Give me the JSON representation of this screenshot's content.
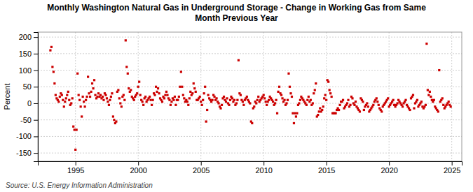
{
  "chart_data": {
    "type": "scatter",
    "title": "Monthly Washington Natural Gas in Underground Storage - Change in Working Gas from Same\nMonth Previous Year",
    "ylabel": "Percent",
    "annotations": [
      "Source: U.S. Energy Information Administration"
    ],
    "color": "#cc0000",
    "marker": "square",
    "grid": true,
    "xlim": [
      1992.0,
      2025.8
    ],
    "ylim": [
      -175,
      215
    ],
    "xticks": [
      1995,
      2000,
      2005,
      2010,
      2015,
      2020,
      2025
    ],
    "yticks": [
      -150,
      -100,
      -50,
      0,
      50,
      100,
      150,
      200
    ],
    "x": [
      1993.0,
      1993.083,
      1993.167,
      1993.25,
      1993.333,
      1993.417,
      1993.5,
      1993.583,
      1993.667,
      1993.75,
      1993.833,
      1993.917,
      1994.0,
      1994.083,
      1994.167,
      1994.25,
      1994.333,
      1994.417,
      1994.5,
      1994.583,
      1994.667,
      1994.75,
      1994.833,
      1994.917,
      1995.0,
      1995.083,
      1995.167,
      1995.25,
      1995.333,
      1995.417,
      1995.5,
      1995.583,
      1995.667,
      1995.75,
      1995.833,
      1995.917,
      1996.0,
      1996.083,
      1996.167,
      1996.25,
      1996.333,
      1996.417,
      1996.5,
      1996.583,
      1996.667,
      1996.75,
      1996.833,
      1996.917,
      1997.0,
      1997.083,
      1997.167,
      1997.25,
      1997.333,
      1997.417,
      1997.5,
      1997.583,
      1997.667,
      1997.75,
      1997.833,
      1997.917,
      1998.0,
      1998.083,
      1998.167,
      1998.25,
      1998.333,
      1998.417,
      1998.5,
      1998.583,
      1998.667,
      1998.75,
      1998.833,
      1998.917,
      1999.0,
      1999.083,
      1999.167,
      1999.25,
      1999.333,
      1999.417,
      1999.5,
      1999.583,
      1999.667,
      1999.75,
      1999.833,
      1999.917,
      2000.0,
      2000.083,
      2000.167,
      2000.25,
      2000.333,
      2000.417,
      2000.5,
      2000.583,
      2000.667,
      2000.75,
      2000.833,
      2000.917,
      2001.0,
      2001.083,
      2001.167,
      2001.25,
      2001.333,
      2001.417,
      2001.5,
      2001.583,
      2001.667,
      2001.75,
      2001.833,
      2001.917,
      2002.0,
      2002.083,
      2002.167,
      2002.25,
      2002.333,
      2002.417,
      2002.5,
      2002.583,
      2002.667,
      2002.75,
      2002.833,
      2002.917,
      2003.0,
      2003.083,
      2003.167,
      2003.25,
      2003.333,
      2003.417,
      2003.5,
      2003.583,
      2003.667,
      2003.75,
      2003.833,
      2003.917,
      2004.0,
      2004.083,
      2004.167,
      2004.25,
      2004.333,
      2004.417,
      2004.5,
      2004.583,
      2004.667,
      2004.75,
      2004.833,
      2004.917,
      2005.0,
      2005.083,
      2005.167,
      2005.25,
      2005.333,
      2005.417,
      2005.5,
      2005.583,
      2005.667,
      2005.75,
      2005.833,
      2005.917,
      2006.0,
      2006.083,
      2006.167,
      2006.25,
      2006.333,
      2006.417,
      2006.5,
      2006.583,
      2006.667,
      2006.75,
      2006.833,
      2006.917,
      2007.0,
      2007.083,
      2007.167,
      2007.25,
      2007.333,
      2007.417,
      2007.5,
      2007.583,
      2007.667,
      2007.75,
      2007.833,
      2007.917,
      2008.0,
      2008.083,
      2008.167,
      2008.25,
      2008.333,
      2008.417,
      2008.5,
      2008.583,
      2008.667,
      2008.75,
      2008.833,
      2008.917,
      2009.0,
      2009.083,
      2009.167,
      2009.25,
      2009.333,
      2009.417,
      2009.5,
      2009.583,
      2009.667,
      2009.75,
      2009.833,
      2009.917,
      2010.0,
      2010.083,
      2010.167,
      2010.25,
      2010.333,
      2010.417,
      2010.5,
      2010.583,
      2010.667,
      2010.75,
      2010.833,
      2010.917,
      2011.0,
      2011.083,
      2011.167,
      2011.25,
      2011.333,
      2011.417,
      2011.5,
      2011.583,
      2011.667,
      2011.75,
      2011.833,
      2011.917,
      2012.0,
      2012.083,
      2012.167,
      2012.25,
      2012.333,
      2012.417,
      2012.5,
      2012.583,
      2012.667,
      2012.75,
      2012.833,
      2012.917,
      2013.0,
      2013.083,
      2013.167,
      2013.25,
      2013.333,
      2013.417,
      2013.5,
      2013.583,
      2013.667,
      2013.75,
      2013.833,
      2013.917,
      2014.0,
      2014.083,
      2014.167,
      2014.25,
      2014.333,
      2014.417,
      2014.5,
      2014.583,
      2014.667,
      2014.75,
      2014.833,
      2014.917,
      2015.0,
      2015.083,
      2015.167,
      2015.25,
      2015.333,
      2015.417,
      2015.5,
      2015.583,
      2015.667,
      2015.75,
      2015.833,
      2015.917,
      2016.0,
      2016.083,
      2016.167,
      2016.25,
      2016.333,
      2016.417,
      2016.5,
      2016.583,
      2016.667,
      2016.75,
      2016.833,
      2016.917,
      2017.0,
      2017.083,
      2017.167,
      2017.25,
      2017.333,
      2017.417,
      2017.5,
      2017.583,
      2017.667,
      2017.75,
      2017.833,
      2017.917,
      2018.0,
      2018.083,
      2018.167,
      2018.25,
      2018.333,
      2018.417,
      2018.5,
      2018.583,
      2018.667,
      2018.75,
      2018.833,
      2018.917,
      2019.0,
      2019.083,
      2019.167,
      2019.25,
      2019.333,
      2019.417,
      2019.5,
      2019.583,
      2019.667,
      2019.75,
      2019.833,
      2019.917,
      2020.0,
      2020.083,
      2020.167,
      2020.25,
      2020.333,
      2020.417,
      2020.5,
      2020.583,
      2020.667,
      2020.75,
      2020.833,
      2020.917,
      2021.0,
      2021.083,
      2021.167,
      2021.25,
      2021.333,
      2021.417,
      2021.5,
      2021.583,
      2021.667,
      2021.75,
      2021.833,
      2021.917,
      2022.0,
      2022.083,
      2022.167,
      2022.25,
      2022.333,
      2022.417,
      2022.5,
      2022.583,
      2022.667,
      2022.75,
      2022.833,
      2022.917,
      2023.0,
      2023.083,
      2023.167,
      2023.25,
      2023.333,
      2023.417,
      2023.5,
      2023.583,
      2023.667,
      2023.75,
      2023.833,
      2023.917,
      2024.0,
      2024.083,
      2024.167,
      2024.25,
      2024.333,
      2024.417,
      2024.5,
      2024.583,
      2024.667,
      2024.75,
      2024.833,
      2024.917
    ],
    "values": [
      160,
      170,
      110,
      95,
      60,
      25,
      15,
      10,
      5,
      20,
      30,
      25,
      10,
      -10,
      5,
      15,
      25,
      35,
      10,
      -5,
      0,
      15,
      -70,
      -80,
      -140,
      -80,
      90,
      25,
      10,
      -10,
      -40,
      20,
      5,
      -10,
      10,
      20,
      80,
      30,
      20,
      35,
      60,
      45,
      70,
      25,
      15,
      20,
      30,
      20,
      25,
      15,
      20,
      10,
      30,
      25,
      15,
      5,
      -5,
      10,
      20,
      30,
      -40,
      -50,
      -60,
      -55,
      35,
      40,
      15,
      0,
      -10,
      20,
      25,
      10,
      190,
      110,
      90,
      45,
      35,
      40,
      20,
      15,
      10,
      20,
      25,
      30,
      50,
      65,
      25,
      10,
      5,
      -5,
      15,
      20,
      5,
      10,
      15,
      20,
      10,
      -5,
      10,
      30,
      25,
      50,
      35,
      45,
      30,
      15,
      10,
      5,
      20,
      15,
      25,
      35,
      25,
      15,
      10,
      -5,
      5,
      15,
      10,
      20,
      -5,
      10,
      10,
      20,
      50,
      95,
      50,
      25,
      15,
      5,
      10,
      5,
      -5,
      15,
      35,
      25,
      30,
      60,
      45,
      35,
      10,
      10,
      15,
      20,
      5,
      -5,
      10,
      30,
      50,
      -55,
      -20,
      25,
      15,
      10,
      5,
      10,
      25,
      20,
      10,
      15,
      5,
      0,
      -10,
      -15,
      -5,
      15,
      20,
      10,
      5,
      15,
      0,
      -5,
      10,
      20,
      15,
      5,
      10,
      -5,
      0,
      10,
      130,
      30,
      25,
      10,
      5,
      -5,
      10,
      15,
      20,
      10,
      5,
      0,
      -55,
      -60,
      -15,
      -10,
      5,
      0,
      10,
      20,
      5,
      10,
      15,
      20,
      25,
      15,
      5,
      -5,
      5,
      10,
      20,
      15,
      10,
      5,
      -5,
      0,
      10,
      -30,
      35,
      50,
      30,
      25,
      15,
      5,
      10,
      -5,
      0,
      10,
      90,
      50,
      30,
      20,
      -30,
      -60,
      -30,
      -40,
      -30,
      -5,
      0,
      10,
      20,
      15,
      10,
      5,
      0,
      -5,
      10,
      20,
      5,
      10,
      -5,
      0,
      30,
      40,
      60,
      -40,
      -35,
      -25,
      -15,
      -25,
      -20,
      -10,
      15,
      25,
      10,
      70,
      65,
      40,
      30,
      20,
      -30,
      -30,
      -30,
      -30,
      -20,
      -15,
      -20,
      -5,
      5,
      5,
      10,
      -15,
      -10,
      -5,
      0,
      10,
      -10,
      -5,
      20,
      15,
      0,
      -5,
      5,
      -10,
      -15,
      -20,
      -25,
      15,
      10,
      5,
      -20,
      -10,
      -5,
      0,
      -10,
      -25,
      -20,
      -15,
      -10,
      -5,
      5,
      10,
      15,
      5,
      -5,
      -15,
      -20,
      -25,
      -10,
      -5,
      0,
      5,
      10,
      15,
      -10,
      -5,
      0,
      5,
      10,
      -5,
      -10,
      -5,
      0,
      10,
      5,
      0,
      -5,
      -10,
      0,
      5,
      10,
      -5,
      -10,
      -15,
      -20,
      15,
      20,
      25,
      -15,
      0,
      5,
      10,
      -10,
      -5,
      0,
      5,
      -10,
      -15,
      -10,
      -5,
      180,
      40,
      25,
      35,
      20,
      10,
      5,
      10,
      -10,
      -15,
      -20,
      -25,
      100,
      5,
      10,
      15,
      -5,
      -15,
      -10,
      -5,
      0,
      5,
      -5,
      -10
    ]
  }
}
